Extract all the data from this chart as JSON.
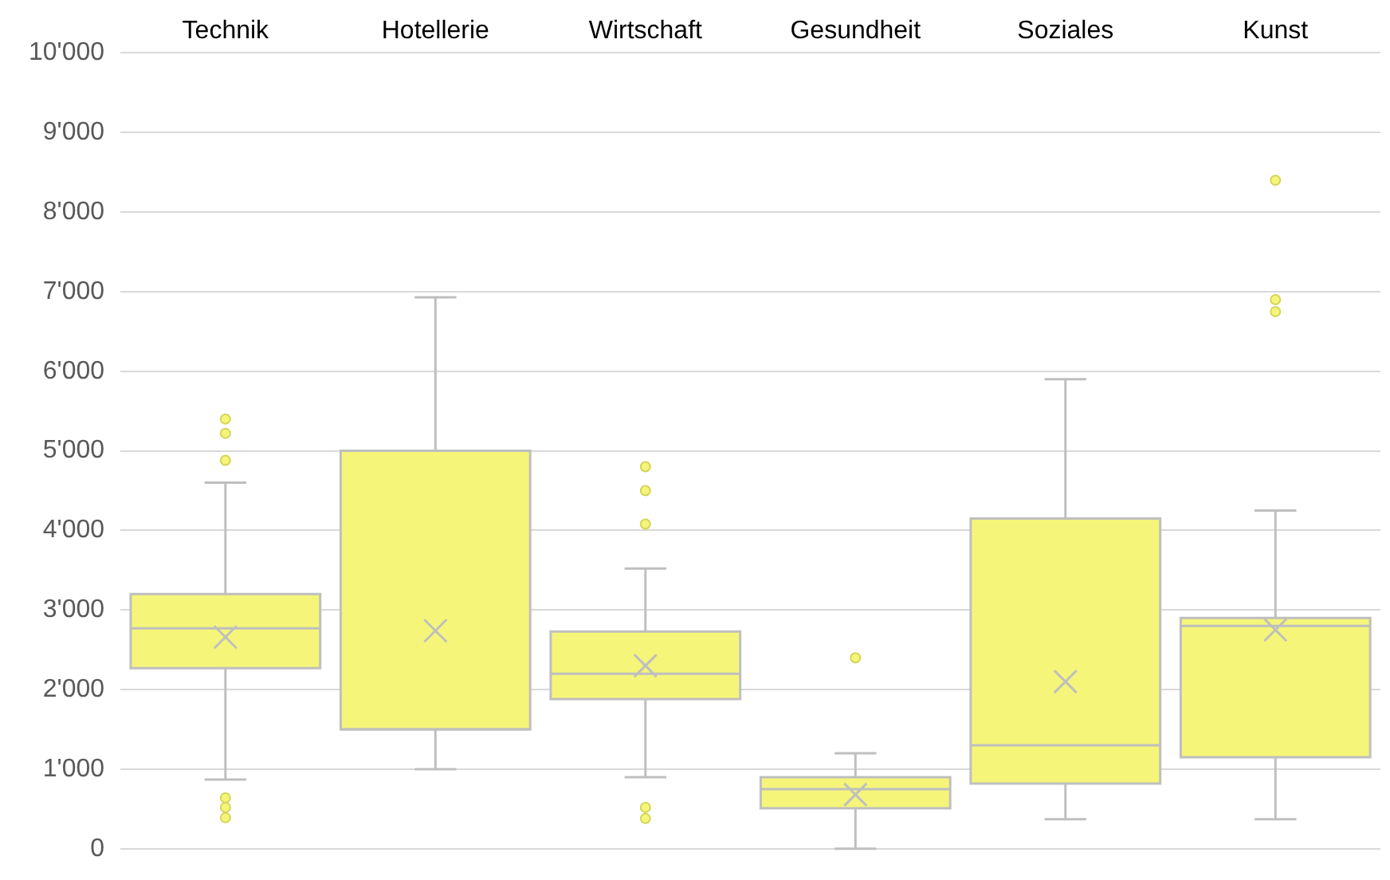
{
  "chart_data": {
    "type": "box",
    "categories": [
      "Technik",
      "Hotellerie",
      "Wirtschaft",
      "Gesundheit",
      "Soziales",
      "Kunst"
    ],
    "series": [
      {
        "color": "#f5f57a",
        "boxes": [
          {
            "low": 870,
            "q1": 2270,
            "median": 2770,
            "q3": 3200,
            "high": 4600,
            "mean": 2660,
            "outliers": [
              5400,
              5220,
              4880,
              640,
              520,
              390
            ]
          },
          {
            "low": 1000,
            "q1": 1500,
            "median": 1500,
            "q3": 5000,
            "high": 6930,
            "mean": 2740
          },
          {
            "low": 900,
            "q1": 1880,
            "median": 2200,
            "q3": 2730,
            "high": 3520,
            "mean": 2300,
            "outliers": [
              4800,
              4500,
              4080,
              520,
              380
            ]
          },
          {
            "low": 0,
            "q1": 510,
            "median": 750,
            "q3": 900,
            "high": 1200,
            "mean": 680,
            "outliers": [
              2400
            ]
          },
          {
            "low": 370,
            "q1": 820,
            "median": 1300,
            "q3": 4150,
            "high": 5900,
            "mean": 2100
          },
          {
            "low": 370,
            "q1": 1150,
            "median": 2800,
            "q3": 2900,
            "high": 4250,
            "mean": 2750,
            "outliers": [
              8400,
              6900,
              6750
            ]
          }
        ]
      }
    ],
    "ylim": [
      0,
      10000
    ],
    "yticks": [
      0,
      {
        "value": 1000,
        "label": "1'000"
      },
      {
        "value": 2000,
        "label": "2'000"
      },
      {
        "value": 3000,
        "label": "3'000"
      },
      {
        "value": 4000,
        "label": "4'000"
      },
      {
        "value": 5000,
        "label": "5'000"
      },
      {
        "value": 6000,
        "label": "6'000"
      },
      {
        "value": 7000,
        "label": "7'000"
      },
      {
        "value": 8000,
        "label": "8'000"
      },
      {
        "value": 9000,
        "label": "9'000"
      },
      {
        "value": 10000,
        "label": "10'000"
      }
    ],
    "grid": "y",
    "legend": false
  }
}
